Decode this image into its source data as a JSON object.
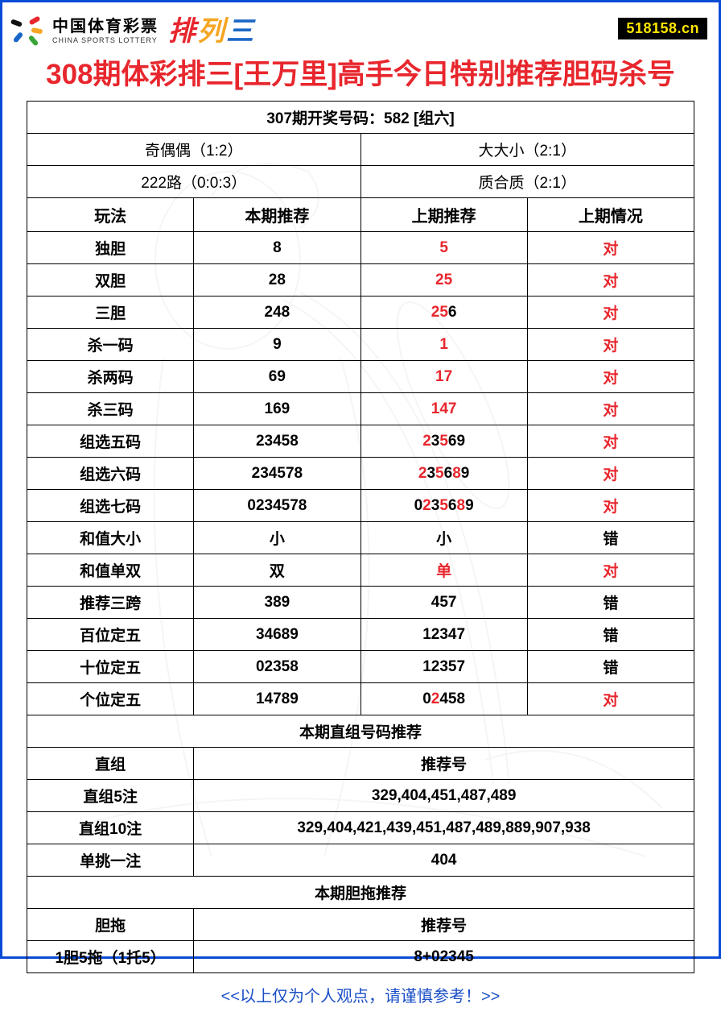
{
  "header": {
    "logo_cn": "中国体育彩票",
    "logo_en": "CHINA SPORTS LOTTERY",
    "pl3_chars": [
      "排",
      "列",
      "三"
    ],
    "site_badge": "518158.cn"
  },
  "title": "308期体彩排三[王万里]高手今日特别推荐胆码杀号",
  "top_row": "307期开奖号码：582 [组六]",
  "pair_rows": [
    {
      "left": "奇偶偶（1:2）",
      "right": "大大小（2:1）"
    },
    {
      "left": "222路（0:0:3）",
      "right": "质合质（2:1）"
    }
  ],
  "cols": {
    "c1": "玩法",
    "c2": "本期推荐",
    "c3": "上期推荐",
    "c4": "上期情况"
  },
  "rows": [
    {
      "name": "独胆",
      "cur": "8",
      "prev": [
        {
          "t": "5",
          "r": true
        }
      ],
      "res": "对",
      "res_red": true
    },
    {
      "name": "双胆",
      "cur": "28",
      "prev": [
        {
          "t": "25",
          "r": true
        }
      ],
      "res": "对",
      "res_red": true
    },
    {
      "name": "三胆",
      "cur": "248",
      "prev": [
        {
          "t": "25",
          "r": true
        },
        {
          "t": "6",
          "r": false
        }
      ],
      "res": "对",
      "res_red": true
    },
    {
      "name": "杀一码",
      "cur": "9",
      "prev": [
        {
          "t": "1",
          "r": true
        }
      ],
      "res": "对",
      "res_red": true
    },
    {
      "name": "杀两码",
      "cur": "69",
      "prev": [
        {
          "t": "17",
          "r": true
        }
      ],
      "res": "对",
      "res_red": true
    },
    {
      "name": "杀三码",
      "cur": "169",
      "prev": [
        {
          "t": "147",
          "r": true
        }
      ],
      "res": "对",
      "res_red": true
    },
    {
      "name": "组选五码",
      "cur": "23458",
      "prev": [
        {
          "t": "2",
          "r": true
        },
        {
          "t": "3",
          "r": false
        },
        {
          "t": "5",
          "r": true
        },
        {
          "t": "69",
          "r": false
        }
      ],
      "res": "对",
      "res_red": true
    },
    {
      "name": "组选六码",
      "cur": "234578",
      "prev": [
        {
          "t": "2",
          "r": true
        },
        {
          "t": "3",
          "r": false
        },
        {
          "t": "5",
          "r": true
        },
        {
          "t": "6",
          "r": false
        },
        {
          "t": "8",
          "r": true
        },
        {
          "t": "9",
          "r": false
        }
      ],
      "res": "对",
      "res_red": true
    },
    {
      "name": "组选七码",
      "cur": "0234578",
      "prev": [
        {
          "t": "0",
          "r": false
        },
        {
          "t": "2",
          "r": true
        },
        {
          "t": "3",
          "r": false
        },
        {
          "t": "5",
          "r": true
        },
        {
          "t": "6",
          "r": false
        },
        {
          "t": "8",
          "r": true
        },
        {
          "t": "9",
          "r": false
        }
      ],
      "res": "对",
      "res_red": true
    },
    {
      "name": "和值大小",
      "cur": "小",
      "prev": [
        {
          "t": "小",
          "r": false
        }
      ],
      "res": "错",
      "res_red": false
    },
    {
      "name": "和值单双",
      "cur": "双",
      "prev": [
        {
          "t": "单",
          "r": true
        }
      ],
      "res": "对",
      "res_red": true
    },
    {
      "name": "推荐三跨",
      "cur": "389",
      "prev": [
        {
          "t": "457",
          "r": false
        }
      ],
      "res": "错",
      "res_red": false
    },
    {
      "name": "百位定五",
      "cur": "34689",
      "prev": [
        {
          "t": "12347",
          "r": false
        }
      ],
      "res": "错",
      "res_red": false
    },
    {
      "name": "十位定五",
      "cur": "02358",
      "prev": [
        {
          "t": "12357",
          "r": false
        }
      ],
      "res": "错",
      "res_red": false
    },
    {
      "name": "个位定五",
      "cur": "14789",
      "prev": [
        {
          "t": "0",
          "r": false
        },
        {
          "t": "2",
          "r": true
        },
        {
          "t": "458",
          "r": false
        }
      ],
      "res": "对",
      "res_red": true
    }
  ],
  "section_zhizu": "本期直组号码推荐",
  "zhizu_header": {
    "left": "直组",
    "right": "推荐号"
  },
  "zhizu_rows": [
    {
      "left": "直组5注",
      "right": "329,404,451,487,489"
    },
    {
      "left": "直组10注",
      "right": "329,404,421,439,451,487,489,889,907,938"
    },
    {
      "left": "单挑一注",
      "right": "404"
    }
  ],
  "section_dantuo": "本期胆拖推荐",
  "dantuo_header": {
    "left": "胆拖",
    "right": "推荐号"
  },
  "dantuo_rows": [
    {
      "left": "1胆5拖（1托5）",
      "right": "8+02345"
    }
  ],
  "footer": "<<以上仅为个人观点，请谨慎参考！>>",
  "colors": {
    "frame": "#0a4bd6",
    "accent_red": "#e8262d",
    "footer_blue": "#1b4fc7",
    "badge_bg": "#000000",
    "badge_fg": "#ffe600"
  }
}
